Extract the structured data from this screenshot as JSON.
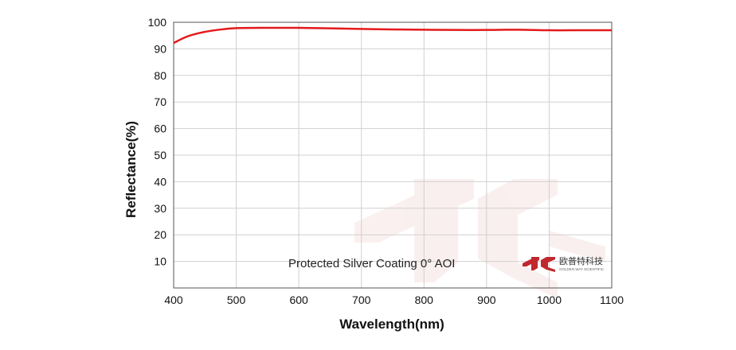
{
  "chart_data": {
    "type": "line",
    "xlabel": "Wavelength(nm)",
    "ylabel": "Reflectance(%)",
    "xlim": [
      400,
      1100
    ],
    "ylim": [
      0,
      100
    ],
    "x_ticks": [
      400,
      500,
      600,
      700,
      800,
      900,
      1000,
      1100
    ],
    "y_ticks": [
      10,
      20,
      30,
      40,
      50,
      60,
      70,
      80,
      90,
      100
    ],
    "grid": true,
    "series": [
      {
        "color": "#e31a1c",
        "x": [
          400,
          420,
          440,
          460,
          480,
          500,
          550,
          600,
          650,
          700,
          750,
          800,
          850,
          900,
          950,
          1000,
          1050,
          1100
        ],
        "y": [
          92.2,
          94.5,
          95.9,
          96.8,
          97.4,
          97.8,
          97.9,
          97.9,
          97.7,
          97.5,
          97.3,
          97.2,
          97.1,
          97.1,
          97.2,
          97.0,
          97.0,
          97.0
        ]
      }
    ],
    "annotation": "Protected Silver Coating  0°  AOI"
  },
  "logo": {
    "name": "欧普特科技",
    "subtitle": "GOLDEN WAY SCIENTIFIC",
    "brand_color": "#c0282d"
  }
}
